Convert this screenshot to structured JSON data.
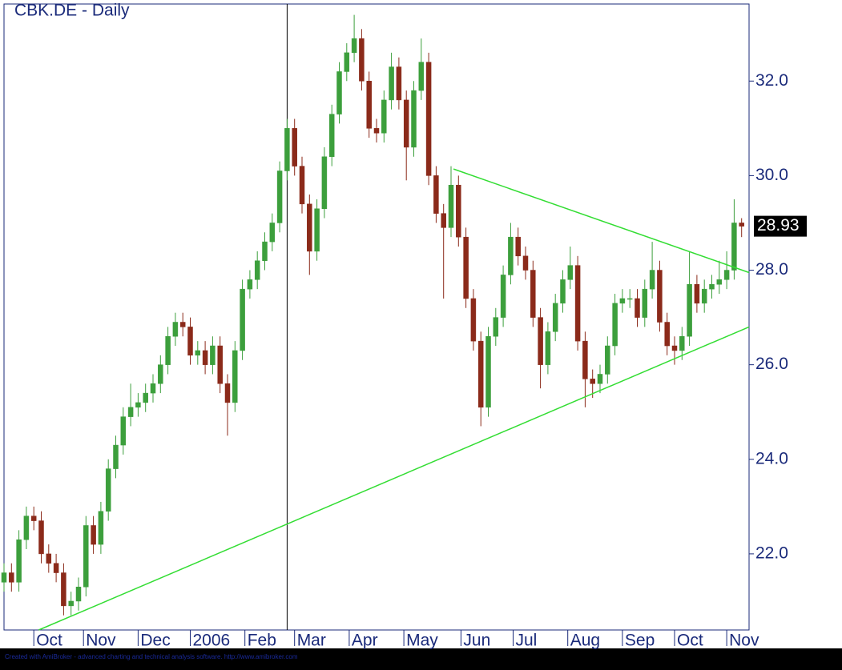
{
  "chart_data": {
    "type": "candlestick",
    "title": "CBK.DE - Daily",
    "footer": "Created with AmiBroker - advanced charting and technical analysis software. http://www.amibroker.com",
    "xlim": [
      0,
      300
    ],
    "xticks": [
      {
        "value": 12,
        "label": "Oct"
      },
      {
        "value": 32,
        "label": "Nov"
      },
      {
        "value": 54,
        "label": "Dec"
      },
      {
        "value": 75,
        "label": "2006"
      },
      {
        "value": 97,
        "label": "Feb"
      },
      {
        "value": 117,
        "label": "Mar"
      },
      {
        "value": 139,
        "label": "Apr"
      },
      {
        "value": 161,
        "label": "May"
      },
      {
        "value": 184,
        "label": "Jun"
      },
      {
        "value": 205,
        "label": "Jul"
      },
      {
        "value": 227,
        "label": "Aug"
      },
      {
        "value": 249,
        "label": "Sep"
      },
      {
        "value": 270,
        "label": "Oct"
      },
      {
        "value": 291,
        "label": "Nov"
      }
    ],
    "ylim": [
      20.39,
      33.63
    ],
    "yticks": [
      {
        "value": 22,
        "label": "22.0"
      },
      {
        "value": 24,
        "label": "24.0"
      },
      {
        "value": 26,
        "label": "26.0"
      },
      {
        "value": 28,
        "label": "28.0"
      },
      {
        "value": 30,
        "label": "30.0"
      },
      {
        "value": 32,
        "label": "32.0"
      }
    ],
    "up_color": "#3c9f3c",
    "down_color": "#8b2a1a",
    "x": [
      0,
      3,
      6,
      9,
      12,
      15,
      18,
      21,
      24,
      27,
      30,
      33,
      36,
      39,
      42,
      45,
      48,
      51,
      54,
      57,
      60,
      63,
      66,
      69,
      72,
      75,
      78,
      81,
      84,
      87,
      90,
      93,
      96,
      99,
      102,
      105,
      108,
      111,
      114,
      117,
      120,
      123,
      126,
      129,
      132,
      135,
      138,
      141,
      144,
      147,
      150,
      153,
      156,
      159,
      162,
      165,
      168,
      171,
      174,
      177,
      180,
      183,
      186,
      189,
      192,
      195,
      198,
      201,
      204,
      207,
      210,
      213,
      216,
      219,
      222,
      225,
      228,
      231,
      234,
      237,
      240,
      243,
      246,
      249,
      252,
      255,
      258,
      261,
      264,
      267,
      270,
      273,
      276,
      279,
      282,
      285,
      288,
      291,
      294,
      297
    ],
    "open": [
      21.4,
      21.6,
      21.4,
      22.3,
      22.8,
      22.7,
      22.0,
      21.8,
      21.6,
      20.9,
      21.0,
      21.3,
      22.6,
      22.2,
      22.9,
      23.8,
      24.3,
      24.9,
      25.1,
      25.2,
      25.4,
      25.6,
      26.0,
      26.6,
      26.9,
      26.8,
      26.2,
      26.3,
      26.0,
      26.4,
      25.6,
      25.2,
      26.3,
      27.6,
      27.8,
      28.2,
      28.6,
      29.0,
      30.1,
      31.0,
      30.2,
      29.4,
      28.4,
      29.3,
      30.4,
      31.3,
      32.2,
      32.6,
      32.9,
      32.0,
      31.0,
      30.9,
      31.6,
      32.3,
      31.6,
      30.6,
      31.8,
      32.4,
      30.0,
      29.2,
      28.9,
      29.8,
      28.7,
      27.4,
      26.5,
      25.1,
      26.6,
      27.0,
      27.9,
      28.7,
      28.3,
      28.0,
      27.0,
      26.0,
      26.7,
      27.3,
      27.8,
      28.1,
      26.5,
      25.7,
      25.6,
      25.8,
      26.4,
      27.3,
      27.4,
      27.4,
      27.0,
      27.6,
      28.0,
      26.9,
      26.4,
      26.3,
      26.6,
      27.7,
      27.3,
      27.6,
      27.7,
      27.8,
      28.0,
      29.0
    ],
    "high": [
      21.8,
      21.8,
      22.5,
      23.0,
      23.0,
      22.9,
      22.2,
      22.0,
      21.8,
      21.2,
      21.5,
      22.8,
      22.8,
      23.1,
      24.0,
      24.5,
      25.1,
      25.6,
      25.4,
      25.6,
      25.8,
      26.2,
      26.8,
      27.1,
      27.1,
      27.0,
      26.5,
      26.5,
      26.6,
      26.6,
      25.8,
      26.5,
      27.8,
      28.0,
      28.4,
      28.8,
      29.2,
      30.3,
      31.2,
      31.2,
      30.4,
      29.6,
      29.5,
      30.6,
      31.5,
      32.4,
      32.8,
      33.4,
      33.1,
      32.2,
      31.2,
      31.8,
      32.6,
      32.5,
      31.8,
      32.0,
      32.9,
      32.6,
      30.2,
      29.4,
      30.2,
      30.0,
      28.9,
      27.6,
      26.7,
      26.8,
      27.2,
      28.1,
      29.0,
      28.9,
      28.5,
      28.2,
      27.2,
      26.9,
      27.5,
      28.0,
      28.5,
      28.3,
      26.7,
      25.9,
      26.0,
      26.6,
      27.5,
      27.6,
      27.6,
      27.6,
      27.8,
      28.6,
      28.2,
      27.1,
      26.6,
      26.8,
      28.4,
      27.9,
      27.8,
      27.9,
      28.2,
      28.4,
      29.5,
      29.1
    ],
    "low": [
      21.2,
      21.2,
      21.2,
      22.1,
      22.5,
      21.8,
      21.6,
      21.4,
      20.7,
      20.7,
      20.8,
      21.1,
      22.0,
      22.0,
      22.7,
      23.6,
      24.1,
      24.7,
      24.9,
      25.0,
      25.2,
      25.4,
      25.8,
      26.4,
      26.6,
      26.0,
      26.0,
      25.8,
      25.8,
      25.4,
      24.5,
      25.0,
      26.1,
      27.4,
      27.6,
      28.0,
      28.4,
      28.8,
      29.9,
      30.0,
      29.2,
      27.9,
      28.2,
      29.1,
      30.2,
      31.1,
      32.0,
      32.4,
      31.8,
      30.8,
      30.7,
      30.7,
      31.4,
      31.4,
      29.9,
      30.4,
      31.6,
      29.8,
      29.0,
      27.4,
      28.7,
      28.5,
      27.2,
      26.3,
      24.7,
      24.9,
      26.4,
      26.8,
      27.7,
      28.1,
      27.8,
      26.8,
      25.5,
      25.8,
      26.5,
      27.1,
      27.6,
      26.3,
      25.1,
      25.3,
      25.4,
      25.6,
      26.2,
      27.1,
      27.2,
      26.8,
      26.8,
      27.4,
      26.7,
      26.2,
      26.0,
      26.1,
      26.4,
      27.1,
      27.1,
      27.4,
      27.5,
      27.6,
      27.8,
      28.7
    ],
    "close": [
      21.6,
      21.4,
      22.3,
      22.8,
      22.7,
      22.0,
      21.8,
      21.6,
      20.9,
      21.0,
      21.3,
      22.6,
      22.2,
      22.9,
      23.8,
      24.3,
      24.9,
      25.1,
      25.2,
      25.4,
      25.6,
      26.0,
      26.6,
      26.9,
      26.8,
      26.2,
      26.3,
      26.0,
      26.4,
      25.6,
      25.2,
      26.3,
      27.6,
      27.8,
      28.2,
      28.6,
      29.0,
      30.1,
      31.0,
      30.2,
      29.4,
      28.4,
      29.3,
      30.4,
      31.3,
      32.2,
      32.6,
      32.9,
      32.0,
      31.0,
      30.9,
      31.6,
      32.3,
      31.6,
      30.6,
      31.8,
      32.4,
      30.0,
      29.2,
      28.9,
      29.8,
      28.7,
      27.4,
      26.5,
      25.1,
      26.6,
      27.0,
      27.9,
      28.7,
      28.3,
      28.0,
      27.0,
      26.0,
      26.7,
      27.3,
      27.8,
      28.1,
      26.5,
      25.7,
      25.6,
      25.8,
      26.4,
      27.3,
      27.4,
      27.4,
      27.0,
      27.6,
      28.0,
      26.9,
      26.4,
      26.3,
      26.6,
      27.7,
      27.3,
      27.6,
      27.7,
      27.8,
      28.0,
      29.0,
      28.93
    ],
    "trendline_color": "#33dd33",
    "trendlines": [
      {
        "x": [
          181,
          300
        ],
        "y": [
          30.14,
          27.95
        ]
      },
      {
        "x": [
          14,
          300
        ],
        "y": [
          20.39,
          26.8
        ]
      }
    ],
    "vline_x": 114
  }
}
